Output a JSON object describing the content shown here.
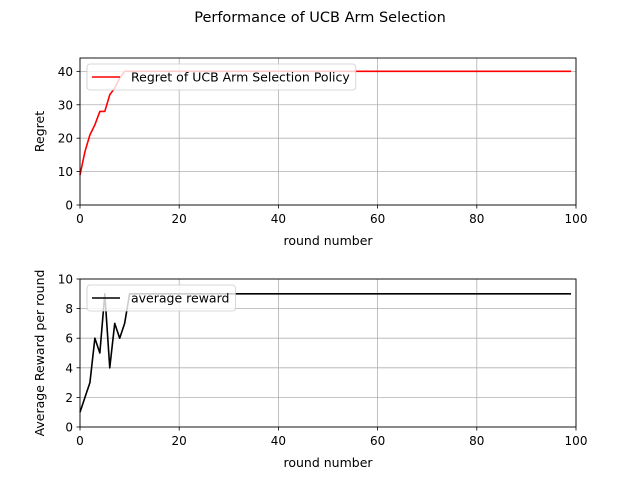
{
  "figure": {
    "title": "Performance of UCB Arm Selection"
  },
  "chart_data": [
    {
      "type": "line",
      "title": "",
      "xlabel": "round number",
      "ylabel": "Regret",
      "xlim": [
        0,
        100
      ],
      "ylim": [
        0,
        44
      ],
      "xticks": [
        "0",
        "20",
        "40",
        "60",
        "80",
        "100"
      ],
      "yticks": [
        "0",
        "10",
        "20",
        "30",
        "40"
      ],
      "grid": true,
      "legend_position": "upper-left",
      "series": [
        {
          "name": "Regret of UCB Arm Selection Policy",
          "color": "#ff0000",
          "x": [
            0,
            1,
            2,
            3,
            4,
            5,
            6,
            7,
            8,
            9,
            10,
            11,
            12,
            13,
            14,
            15,
            16,
            17,
            18,
            19,
            20,
            21,
            22,
            23,
            24,
            25,
            26,
            27,
            28,
            29,
            30,
            31,
            32,
            33,
            34,
            35,
            36,
            37,
            38,
            39,
            40,
            41,
            42,
            43,
            44,
            45,
            46,
            47,
            48,
            49,
            50,
            51,
            52,
            53,
            54,
            55,
            56,
            57,
            58,
            59,
            60,
            61,
            62,
            63,
            64,
            65,
            66,
            67,
            68,
            69,
            70,
            71,
            72,
            73,
            74,
            75,
            76,
            77,
            78,
            79,
            80,
            81,
            82,
            83,
            84,
            85,
            86,
            87,
            88,
            89,
            90,
            91,
            92,
            93,
            94,
            95,
            96,
            97,
            98,
            99
          ],
          "y": [
            9,
            16,
            21,
            24,
            28,
            28,
            33,
            35,
            38,
            40,
            40,
            40,
            40,
            40,
            40,
            40,
            40,
            40,
            40,
            40,
            40,
            40,
            40,
            40,
            40,
            40,
            40,
            40,
            40,
            40,
            40,
            40,
            40,
            40,
            40,
            40,
            40,
            40,
            40,
            40,
            40,
            40,
            40,
            40,
            40,
            40,
            40,
            40,
            40,
            40,
            40,
            40,
            40,
            40,
            40,
            40,
            40,
            40,
            40,
            40,
            40,
            40,
            40,
            40,
            40,
            40,
            40,
            40,
            40,
            40,
            40,
            40,
            40,
            40,
            40,
            40,
            40,
            40,
            40,
            40,
            40,
            40,
            40,
            40,
            40,
            40,
            40,
            40,
            40,
            40,
            40,
            40,
            40,
            40,
            40,
            40,
            40,
            40,
            40,
            40
          ]
        }
      ]
    },
    {
      "type": "line",
      "title": "",
      "xlabel": "round number",
      "ylabel": "Average Reward per round",
      "xlim": [
        0,
        100
      ],
      "ylim": [
        0,
        10
      ],
      "xticks": [
        "0",
        "20",
        "40",
        "60",
        "80",
        "100"
      ],
      "yticks": [
        "0",
        "2",
        "4",
        "6",
        "8",
        "10"
      ],
      "grid": true,
      "legend_position": "upper-left",
      "series": [
        {
          "name": "average reward",
          "color": "#000000",
          "x": [
            0,
            1,
            2,
            3,
            4,
            5,
            6,
            7,
            8,
            9,
            10,
            11,
            12,
            13,
            14,
            15,
            16,
            17,
            18,
            19,
            20,
            21,
            22,
            23,
            24,
            25,
            26,
            27,
            28,
            29,
            30,
            31,
            32,
            33,
            34,
            35,
            36,
            37,
            38,
            39,
            40,
            41,
            42,
            43,
            44,
            45,
            46,
            47,
            48,
            49,
            50,
            51,
            52,
            53,
            54,
            55,
            56,
            57,
            58,
            59,
            60,
            61,
            62,
            63,
            64,
            65,
            66,
            67,
            68,
            69,
            70,
            71,
            72,
            73,
            74,
            75,
            76,
            77,
            78,
            79,
            80,
            81,
            82,
            83,
            84,
            85,
            86,
            87,
            88,
            89,
            90,
            91,
            92,
            93,
            94,
            95,
            96,
            97,
            98,
            99
          ],
          "y": [
            1,
            2,
            3,
            6,
            5,
            9,
            4,
            7,
            6,
            7,
            9,
            9,
            9,
            9,
            9,
            9,
            9,
            9,
            9,
            9,
            9,
            9,
            9,
            9,
            9,
            9,
            9,
            9,
            9,
            9,
            9,
            9,
            9,
            9,
            9,
            9,
            9,
            9,
            9,
            9,
            9,
            9,
            9,
            9,
            9,
            9,
            9,
            9,
            9,
            9,
            9,
            9,
            9,
            9,
            9,
            9,
            9,
            9,
            9,
            9,
            9,
            9,
            9,
            9,
            9,
            9,
            9,
            9,
            9,
            9,
            9,
            9,
            9,
            9,
            9,
            9,
            9,
            9,
            9,
            9,
            9,
            9,
            9,
            9,
            9,
            9,
            9,
            9,
            9,
            9,
            9,
            9,
            9,
            9,
            9,
            9,
            9,
            9,
            9,
            9
          ]
        }
      ]
    }
  ]
}
